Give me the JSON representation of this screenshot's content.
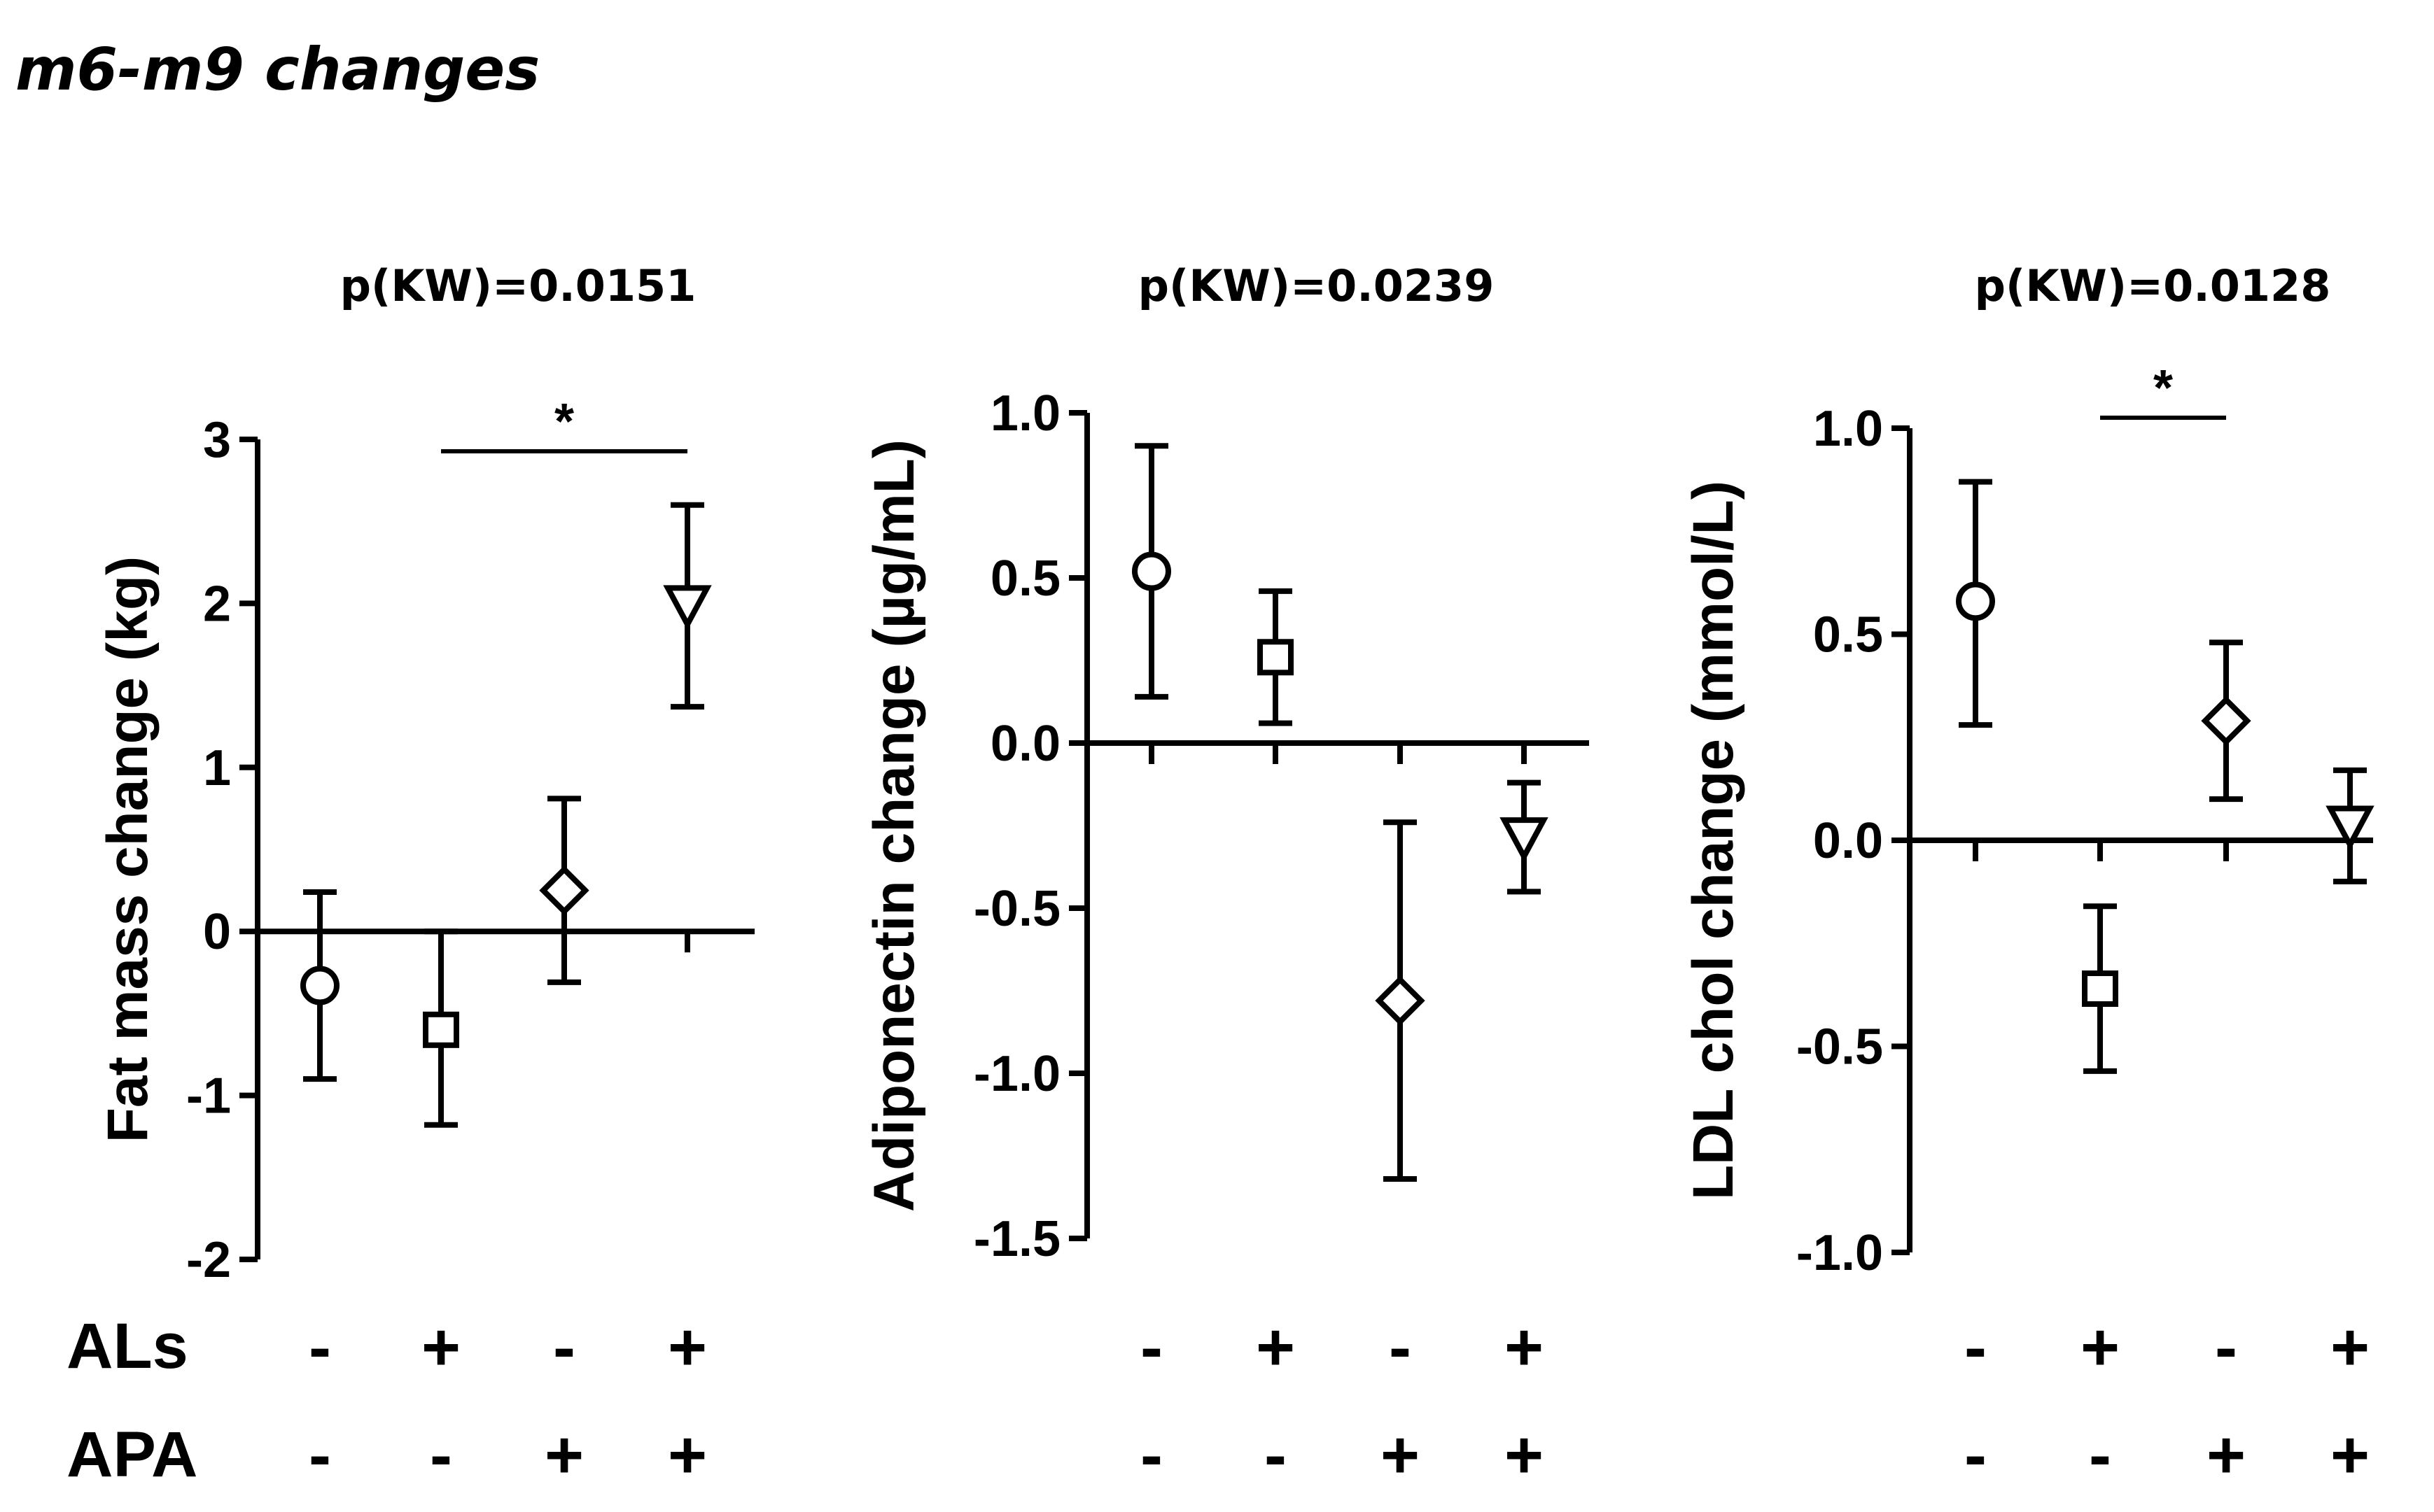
{
  "figure_title": "m6-m9 changes",
  "row_labels": {
    "als": "ALs",
    "apa": "APA"
  },
  "groups": {
    "als": [
      "-",
      "+",
      "-",
      "+"
    ],
    "apa": [
      "-",
      "-",
      "+",
      "+"
    ]
  },
  "chart_data": [
    {
      "type": "scatter",
      "title": "p(KW)=0.0151",
      "ylabel": "Fat mass change (kg)",
      "ylim": [
        -2,
        3
      ],
      "yticks": [
        -2,
        -1,
        0,
        1,
        2,
        3
      ],
      "ytick_labels": [
        "-2",
        "-1",
        "0",
        "1",
        "2",
        "3"
      ],
      "markers": [
        "circle",
        "square",
        "diamond",
        "triangle-down"
      ],
      "means": [
        -0.33,
        -0.6,
        0.25,
        2.0
      ],
      "err_low": [
        -0.9,
        -1.18,
        -0.31,
        1.37
      ],
      "err_high": [
        0.24,
        0.0,
        0.81,
        2.6
      ],
      "significance": [
        {
          "from": 1,
          "to": 3,
          "label": "*"
        }
      ]
    },
    {
      "type": "scatter",
      "title": "p(KW)=0.0239",
      "ylabel": "Adiponectin change (µg/mL)",
      "ylim": [
        -1.5,
        1.0
      ],
      "yticks": [
        -1.5,
        -1.0,
        -0.5,
        0.0,
        0.5,
        1.0
      ],
      "ytick_labels": [
        "-1.5",
        "-1.0",
        "-0.5",
        "0.0",
        "0.5",
        "1.0"
      ],
      "markers": [
        "circle",
        "square",
        "diamond",
        "triangle-down"
      ],
      "means": [
        0.52,
        0.26,
        -0.78,
        -0.28
      ],
      "err_low": [
        0.14,
        0.06,
        -1.32,
        -0.45
      ],
      "err_high": [
        0.9,
        0.46,
        -0.24,
        -0.12
      ],
      "significance": []
    },
    {
      "type": "scatter",
      "title": "p(KW)=0.0128",
      "ylabel": "LDL chol change (mmol/L)",
      "ylim": [
        -1.0,
        1.0
      ],
      "yticks": [
        -1.0,
        -0.5,
        0.0,
        0.5,
        1.0
      ],
      "ytick_labels": [
        "-1.0",
        "-0.5",
        "0.0",
        "0.5",
        "1.0"
      ],
      "markers": [
        "circle",
        "square",
        "diamond",
        "triangle-down"
      ],
      "means": [
        0.58,
        -0.36,
        0.29,
        0.04
      ],
      "err_low": [
        0.28,
        -0.56,
        0.1,
        -0.1
      ],
      "err_high": [
        0.87,
        -0.16,
        0.48,
        0.17
      ],
      "significance": [
        {
          "from": 1,
          "to": 2,
          "label": "*"
        }
      ]
    }
  ]
}
